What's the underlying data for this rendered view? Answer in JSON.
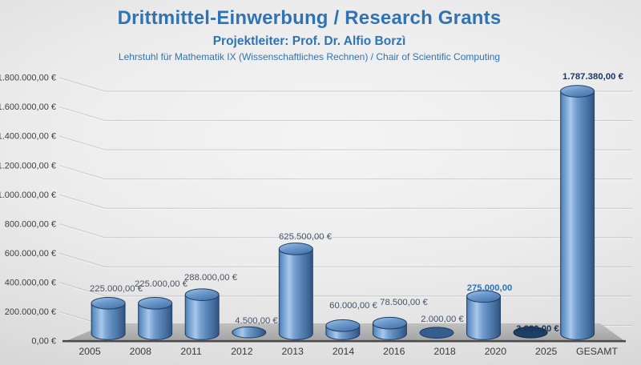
{
  "header": {
    "title": "Drittmittel-Einwerbung / Research Grants",
    "subtitle": "Projektleiter: Prof. Dr. Alfio Borzì",
    "department": "Lehrstuhl für Mathematik IX (Wissenschaftliches Rechnen) / Chair of Scientific Computing"
  },
  "colors": {
    "header_blue": "#2E74B5",
    "data_label_default": "#44546A",
    "data_label_blue": "#2E74B5",
    "data_label_navy": "#17365D",
    "axis_text": "#3F3F3F",
    "bar_outline": "#1D3C62",
    "bar_fill_mid": "#6E9BD0",
    "bar_highlight": "#A9C9EA",
    "floor_gray": "#ABABAB"
  },
  "chart_data": {
    "type": "bar",
    "subtype": "3d-cylinder",
    "title": "Drittmittel-Einwerbung / Research Grants",
    "xlabel": "",
    "ylabel": "",
    "legend": "none",
    "gridlines": true,
    "currency": "EUR",
    "categories": [
      "2005",
      "2008",
      "2011",
      "2012",
      "2013",
      "2014",
      "2016",
      "2018",
      "2020",
      "2025",
      "GESAMT"
    ],
    "values": [
      225000,
      225000,
      288000,
      4500,
      625500,
      60000,
      78500,
      2000,
      275000,
      3880,
      1787380
    ],
    "data_labels": [
      "225.000,00 €",
      "225.000,00 €",
      "288.000,00 €",
      "4.500,00 €",
      "625.500,00 €",
      "60.000,00 €",
      "78.500,00 €",
      "2.000,00 €",
      "275.000,00",
      "3.880,00 €",
      "1.787.380,00 €"
    ],
    "label_emphasis": [
      "default",
      "default",
      "default",
      "default",
      "default",
      "default",
      "default",
      "default",
      "blue-bold",
      "navy-bold",
      "navy-semibold"
    ],
    "y_axis": {
      "min": 0,
      "max": 1800000,
      "tick_step": 200000,
      "tick_values": [
        0,
        200000,
        400000,
        600000,
        800000,
        1000000,
        1200000,
        1400000,
        1600000,
        1800000
      ],
      "tick_labels": [
        "0,00 €",
        "200.000,00 €",
        "400.000,00 €",
        "600.000,00 €",
        "800.000,00 €",
        "1.000.000,00 €",
        "1.200.000,00 €",
        "1.400.000,00 €",
        "1.600.000,00 €",
        "1.800.000,00 €"
      ]
    }
  }
}
